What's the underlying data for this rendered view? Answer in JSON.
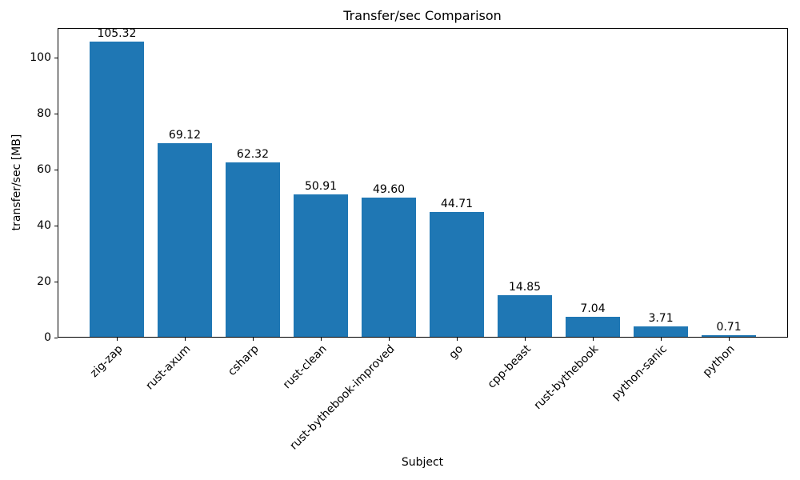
{
  "chart_data": {
    "type": "bar",
    "title": "Transfer/sec Comparison",
    "xlabel": "Subject",
    "ylabel": "transfer/sec [MB]",
    "categories": [
      "zig-zap",
      "rust-axum",
      "csharp",
      "rust-clean",
      "rust-bythebook-improved",
      "go",
      "cpp-beast",
      "rust-bythebook",
      "python-sanic",
      "python"
    ],
    "values": [
      105.32,
      69.12,
      62.32,
      50.91,
      49.6,
      44.71,
      14.85,
      7.04,
      3.71,
      0.71
    ],
    "value_labels": [
      "105.32",
      "69.12",
      "62.32",
      "50.91",
      "49.60",
      "44.71",
      "14.85",
      "7.04",
      "3.71",
      "0.71"
    ],
    "yticks": [
      0,
      20,
      40,
      60,
      80,
      100
    ],
    "ytick_labels": [
      "0",
      "20",
      "40",
      "60",
      "80",
      "100"
    ],
    "ylim": [
      0,
      110.59
    ],
    "bar_color": "#1f77b4",
    "axis_color": "#000000",
    "grid": false,
    "legend": false,
    "x_tick_rotation_deg": 45
  }
}
